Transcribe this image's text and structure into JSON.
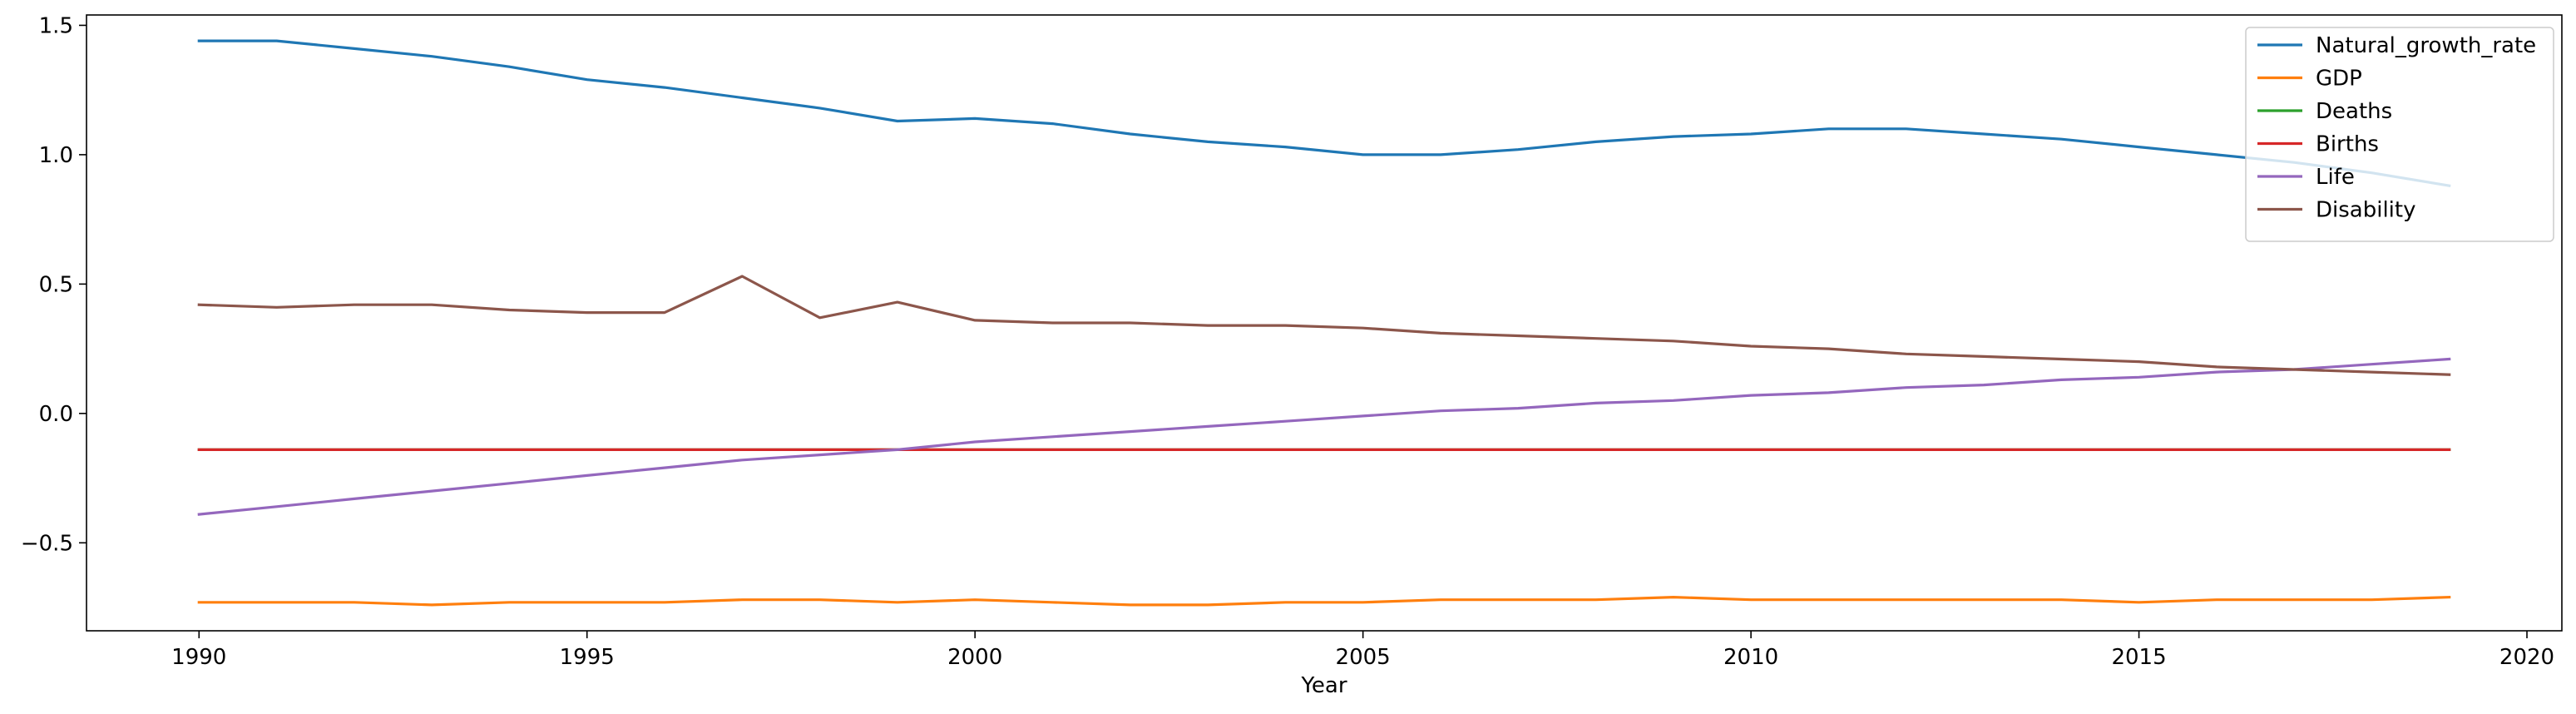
{
  "chart_data": {
    "type": "line",
    "title": "",
    "xlabel": "Year",
    "ylabel": "",
    "xlim": [
      1988.55,
      2020.45
    ],
    "ylim": [
      -0.84,
      1.54
    ],
    "xticks": [
      1990,
      1995,
      2000,
      2005,
      2010,
      2015,
      2020
    ],
    "yticks": [
      -0.5,
      0.0,
      0.5,
      1.0,
      1.5
    ],
    "ytick_labels": [
      "−0.5",
      "0.0",
      "0.5",
      "1.0",
      "1.5"
    ],
    "grid": false,
    "legend_position": "top-right",
    "x": [
      1990,
      1991,
      1992,
      1993,
      1994,
      1995,
      1996,
      1997,
      1998,
      1999,
      2000,
      2001,
      2002,
      2003,
      2004,
      2005,
      2006,
      2007,
      2008,
      2009,
      2010,
      2011,
      2012,
      2013,
      2014,
      2015,
      2016,
      2017,
      2018,
      2019
    ],
    "series": [
      {
        "name": "Natural_growth_rate",
        "color": "#1f77b4",
        "values": [
          1.44,
          1.44,
          1.41,
          1.38,
          1.34,
          1.29,
          1.26,
          1.22,
          1.18,
          1.13,
          1.14,
          1.12,
          1.08,
          1.05,
          1.03,
          1.0,
          1.0,
          1.02,
          1.05,
          1.07,
          1.08,
          1.1,
          1.1,
          1.08,
          1.06,
          1.03,
          1.0,
          0.97,
          0.93,
          0.88
        ]
      },
      {
        "name": "GDP",
        "color": "#ff7f0e",
        "values": [
          -0.73,
          -0.73,
          -0.73,
          -0.74,
          -0.73,
          -0.73,
          -0.73,
          -0.72,
          -0.72,
          -0.73,
          -0.72,
          -0.73,
          -0.74,
          -0.74,
          -0.73,
          -0.73,
          -0.72,
          -0.72,
          -0.72,
          -0.71,
          -0.72,
          -0.72,
          -0.72,
          -0.72,
          -0.72,
          -0.73,
          -0.72,
          -0.72,
          -0.72,
          -0.71
        ]
      },
      {
        "name": "Deaths",
        "color": "#2ca02c",
        "values": [
          -0.14,
          -0.14,
          -0.14,
          -0.14,
          -0.14,
          -0.14,
          -0.14,
          -0.14,
          -0.14,
          -0.14,
          -0.14,
          -0.14,
          -0.14,
          -0.14,
          -0.14,
          -0.14,
          -0.14,
          -0.14,
          -0.14,
          -0.14,
          -0.14,
          -0.14,
          -0.14,
          -0.14,
          -0.14,
          -0.14,
          -0.14,
          -0.14,
          -0.14,
          -0.14
        ]
      },
      {
        "name": "Births",
        "color": "#d62728",
        "values": [
          -0.14,
          -0.14,
          -0.14,
          -0.14,
          -0.14,
          -0.14,
          -0.14,
          -0.14,
          -0.14,
          -0.14,
          -0.14,
          -0.14,
          -0.14,
          -0.14,
          -0.14,
          -0.14,
          -0.14,
          -0.14,
          -0.14,
          -0.14,
          -0.14,
          -0.14,
          -0.14,
          -0.14,
          -0.14,
          -0.14,
          -0.14,
          -0.14,
          -0.14,
          -0.14
        ]
      },
      {
        "name": "Life",
        "color": "#9467bd",
        "values": [
          -0.39,
          -0.36,
          -0.33,
          -0.3,
          -0.27,
          -0.24,
          -0.21,
          -0.18,
          -0.16,
          -0.14,
          -0.11,
          -0.09,
          -0.07,
          -0.05,
          -0.03,
          -0.01,
          0.01,
          0.02,
          0.04,
          0.05,
          0.07,
          0.08,
          0.1,
          0.11,
          0.13,
          0.14,
          0.16,
          0.17,
          0.19,
          0.21
        ]
      },
      {
        "name": "Disability",
        "color": "#8c564b",
        "values": [
          0.42,
          0.41,
          0.42,
          0.42,
          0.4,
          0.39,
          0.39,
          0.53,
          0.37,
          0.43,
          0.36,
          0.35,
          0.35,
          0.34,
          0.34,
          0.33,
          0.31,
          0.3,
          0.29,
          0.28,
          0.26,
          0.25,
          0.23,
          0.22,
          0.21,
          0.2,
          0.18,
          0.17,
          0.16,
          0.15
        ]
      }
    ]
  }
}
